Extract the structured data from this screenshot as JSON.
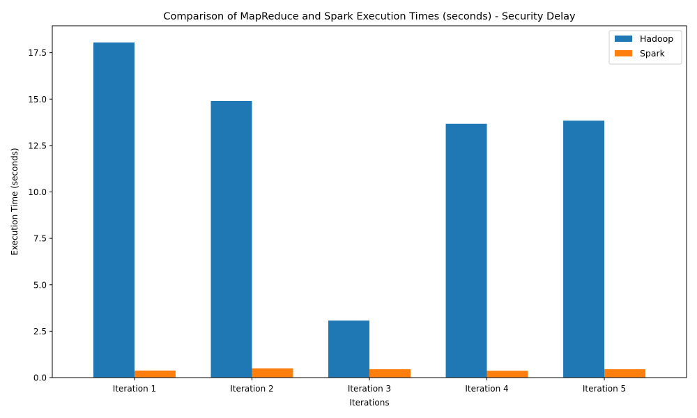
{
  "chart_data": {
    "type": "bar",
    "title": "Comparison of MapReduce and Spark Execution Times (seconds) - Security Delay",
    "xlabel": "Iterations",
    "ylabel": "Execution Time (seconds)",
    "categories": [
      "Iteration 1",
      "Iteration 2",
      "Iteration 3",
      "Iteration 4",
      "Iteration 5"
    ],
    "series": [
      {
        "name": "Hadoop",
        "color": "#1f77b4",
        "values": [
          18.05,
          14.9,
          3.07,
          13.67,
          13.84
        ]
      },
      {
        "name": "Spark",
        "color": "#ff7f0e",
        "values": [
          0.38,
          0.5,
          0.45,
          0.37,
          0.45
        ]
      }
    ],
    "ylim": [
      0,
      18.95
    ],
    "yticks": [
      0.0,
      2.5,
      5.0,
      7.5,
      10.0,
      12.5,
      15.0,
      17.5
    ],
    "ytick_labels": [
      "0.0",
      "2.5",
      "5.0",
      "7.5",
      "10.0",
      "12.5",
      "15.0",
      "17.5"
    ],
    "grid": false,
    "legend_position": "top-right"
  }
}
